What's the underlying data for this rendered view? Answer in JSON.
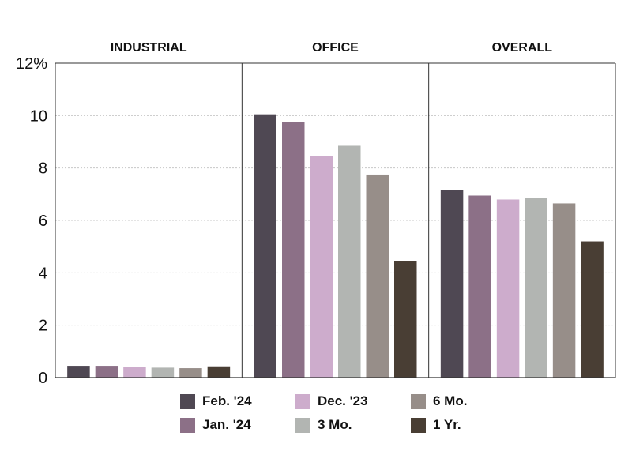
{
  "chart_data": {
    "type": "bar",
    "ylabel": "",
    "xlabel": "",
    "ylim": [
      0,
      12
    ],
    "yticks": [
      {
        "value": 0,
        "label": "0"
      },
      {
        "value": 2,
        "label": "2"
      },
      {
        "value": 4,
        "label": "4"
      },
      {
        "value": 6,
        "label": "6"
      },
      {
        "value": 8,
        "label": "8"
      },
      {
        "value": 10,
        "label": "10"
      },
      {
        "value": 12,
        "label": "12%"
      }
    ],
    "grid": true,
    "legend_position": "bottom",
    "categories": [
      "INDUSTRIAL",
      "OFFICE",
      "OVERALL"
    ],
    "series": [
      {
        "name": "Feb. '24",
        "color": "#4f4853",
        "values": [
          0.45,
          10.05,
          7.15
        ]
      },
      {
        "name": "Jan. '24",
        "color": "#8c7087",
        "values": [
          0.45,
          9.75,
          6.95
        ]
      },
      {
        "name": "Dec. '23",
        "color": "#cdaccc",
        "values": [
          0.4,
          8.45,
          6.8
        ]
      },
      {
        "name": "3 Mo.",
        "color": "#b2b5b2",
        "values": [
          0.38,
          8.85,
          6.85
        ]
      },
      {
        "name": "6 Mo.",
        "color": "#978e89",
        "values": [
          0.36,
          7.75,
          6.65
        ]
      },
      {
        "name": "1 Yr.",
        "color": "#493e34",
        "values": [
          0.43,
          4.45,
          5.2
        ]
      }
    ]
  }
}
